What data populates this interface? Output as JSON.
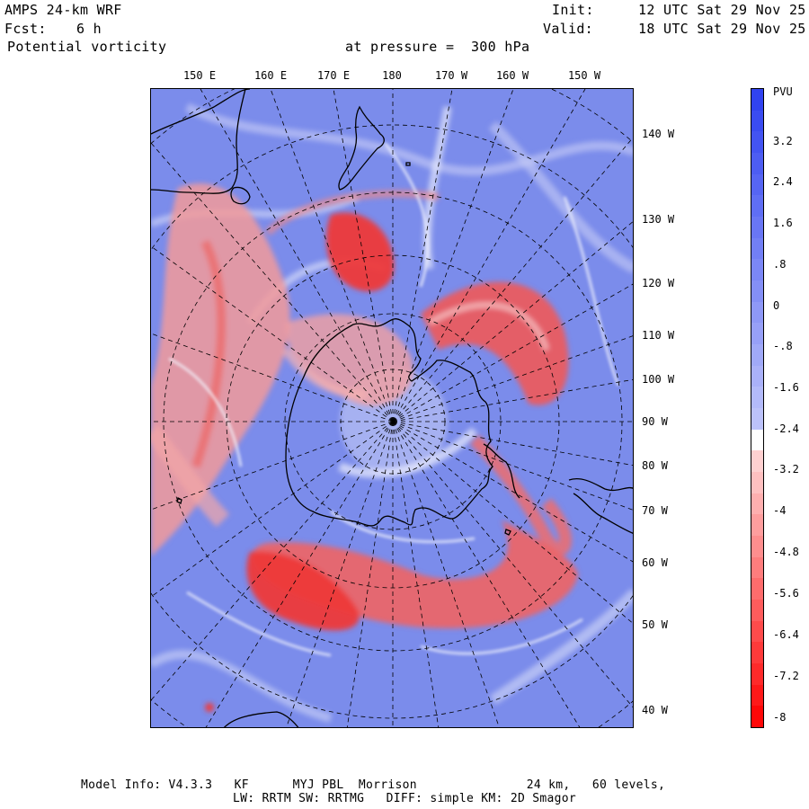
{
  "header": {
    "model_title": "AMPS 24-km WRF",
    "forecast_label": "Fcst:",
    "forecast_value": "6 h",
    "field_name": "Potential vorticity",
    "level_text": "at pressure =  300 hPa",
    "init_label": "Init:",
    "init_value": "12 UTC Sat 29 Nov 25",
    "valid_label": "Valid:",
    "valid_value": "18 UTC Sat 29 Nov 25"
  },
  "map": {
    "top_longitude_labels": [
      "150 E",
      "160 E",
      "170 E",
      "180",
      "170 W",
      "160 W",
      "150 W"
    ],
    "right_longitude_labels": [
      "140 W",
      "130 W",
      "120 W",
      "110 W",
      "100 W",
      "90 W",
      "80 W",
      "70 W",
      "60 W",
      "50 W",
      "40 W"
    ],
    "projection": "south polar stereographic",
    "field": "potential vorticity at 300 hPa"
  },
  "colorbar": {
    "unit": "PVU",
    "tick_labels": [
      "3.2",
      "2.4",
      "1.6",
      ".8",
      "0",
      "-.8",
      "-1.6",
      "-2.4",
      "-3.2",
      "-4",
      "-4.8",
      "-5.6",
      "-6.4",
      "-7.2",
      "-8"
    ],
    "range": [
      -8,
      4
    ],
    "colors": {
      "positive": "#2c3ff0",
      "neutral": "#ffffff",
      "negative": "#ff0000"
    }
  },
  "footer": {
    "line1": "Model Info: V4.3.3   KF      MYJ PBL  Morrison               24 km,   60 levels,",
    "line2": "LW: RRTM SW: RRTMG   DIFF: simple KM: 2D Smagor"
  }
}
